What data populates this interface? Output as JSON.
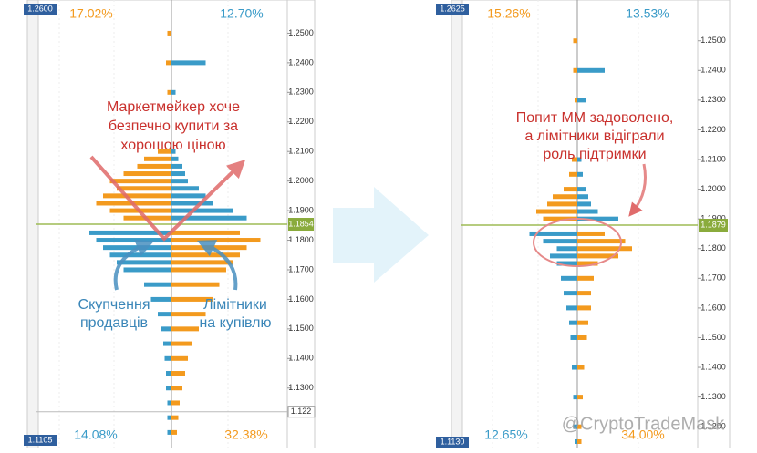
{
  "panels": [
    {
      "top_label": {
        "value": 1.26,
        "label": "1.2600"
      },
      "bottom_label": 1.1105,
      "pct_top_left": "17.02%",
      "pct_top_right": "12.70%",
      "pct_bottom_left": "14.08%",
      "pct_bottom_right": "32.38%",
      "price_line": 1.1854,
      "marker_level": 1.122,
      "yticks": [
        {
          "value": 1.25,
          "label": "1.2500"
        },
        {
          "value": 1.24,
          "label": "1.2400"
        },
        {
          "value": 1.23,
          "label": "1.2300"
        },
        {
          "value": 1.22,
          "label": "1.2200"
        },
        {
          "value": 1.21,
          "label": "1.2100"
        },
        {
          "value": 1.2,
          "label": "1.2000"
        },
        {
          "value": 1.19,
          "label": "1.1900"
        },
        {
          "value": 1.18,
          "label": "1.1800"
        },
        {
          "value": 1.17,
          "label": "1.1700"
        },
        {
          "value": 1.16,
          "label": "1.1600"
        },
        {
          "value": 1.15,
          "label": "1.1500"
        },
        {
          "value": 1.14,
          "label": "1.1400"
        },
        {
          "value": 1.13,
          "label": "1.1300"
        }
      ],
      "levels": {
        "prices": [
          1.25,
          1.24,
          1.23,
          1.21,
          1.2075,
          1.205,
          1.2025,
          1.2,
          1.1975,
          1.195,
          1.1925,
          1.19,
          1.1875,
          1.1825,
          1.18,
          1.1775,
          1.175,
          1.1725,
          1.17,
          1.165,
          1.16,
          1.155,
          1.15,
          1.145,
          1.14,
          1.135,
          1.13,
          1.125,
          1.12,
          1.115
        ],
        "orange": [
          3,
          4,
          3,
          10,
          20,
          25,
          35,
          45,
          40,
          50,
          55,
          45,
          35,
          50,
          65,
          55,
          50,
          45,
          40,
          35,
          30,
          25,
          20,
          15,
          12,
          10,
          8,
          6,
          5,
          4
        ],
        "blue": [
          0,
          25,
          3,
          3,
          5,
          8,
          10,
          12,
          20,
          25,
          30,
          45,
          55,
          60,
          55,
          50,
          45,
          40,
          35,
          20,
          15,
          10,
          8,
          6,
          5,
          4,
          4,
          3,
          3,
          3
        ]
      }
    },
    {
      "top_label": {
        "value": 1.2625,
        "label": "1.2625"
      },
      "bottom_label": {
        "value": 1.113,
        "label": "1.1130"
      },
      "pct_top_left": "15.26%",
      "pct_top_right": "13.53%",
      "pct_bottom_left": "12.65%",
      "pct_bottom_right": "34.00%",
      "price_line": 1.1879,
      "yticks": [
        {
          "value": 1.25,
          "label": "1.2500"
        },
        {
          "value": 1.24,
          "label": "1.2400"
        },
        {
          "value": 1.23,
          "label": "1.2300"
        },
        {
          "value": 1.22,
          "label": "1.2200"
        },
        {
          "value": 1.21,
          "label": "1.2100"
        },
        {
          "value": 1.2,
          "label": "1.2000"
        },
        {
          "value": 1.19,
          "label": "1.1900"
        },
        {
          "value": 1.18,
          "label": "1.1800"
        },
        {
          "value": 1.17,
          "label": "1.1700"
        },
        {
          "value": 1.16,
          "label": "1.1600"
        },
        {
          "value": 1.15,
          "label": "1.1500"
        },
        {
          "value": 1.14,
          "label": "1.1400"
        },
        {
          "value": 1.13,
          "label": "1.1300"
        },
        {
          "value": 1.12,
          "label": "1.1200"
        }
      ],
      "levels": {
        "prices": [
          1.25,
          1.24,
          1.23,
          1.21,
          1.205,
          1.2,
          1.1975,
          1.195,
          1.1925,
          1.19,
          1.185,
          1.1825,
          1.18,
          1.1775,
          1.175,
          1.17,
          1.165,
          1.16,
          1.155,
          1.15,
          1.14,
          1.13,
          1.12,
          1.115
        ],
        "orange": [
          3,
          3,
          2,
          4,
          6,
          10,
          18,
          22,
          30,
          25,
          20,
          35,
          40,
          30,
          15,
          12,
          10,
          10,
          8,
          7,
          5,
          4,
          3,
          3
        ],
        "blue": [
          0,
          20,
          6,
          3,
          4,
          6,
          8,
          10,
          15,
          30,
          35,
          25,
          15,
          20,
          15,
          12,
          10,
          8,
          6,
          5,
          4,
          3,
          3,
          2
        ]
      }
    }
  ],
  "annotations": {
    "left_title": [
      "Маркетмейкер хоче",
      "безпечно купити за",
      "хорошою ціною"
    ],
    "sellers": [
      "Скупчення",
      "продавців"
    ],
    "buyers": [
      "Лімітники",
      "на купівлю"
    ],
    "right_title": [
      "Попит ММ задоволено,",
      "а лімітники відіграли",
      "роль підтримки"
    ]
  },
  "watermark": "@CryptoTradeMask"
}
